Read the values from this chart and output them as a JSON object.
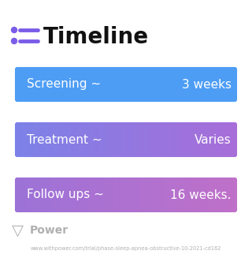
{
  "title": "Timeline",
  "background_color": "#ffffff",
  "rows": [
    {
      "label": "Screening ~",
      "value": "3 weeks",
      "color_left": "#4d9df5",
      "color_right": "#4d9df5"
    },
    {
      "label": "Treatment ~",
      "value": "Varies",
      "color_left": "#7b82e8",
      "color_right": "#a96dd8"
    },
    {
      "label": "Follow ups ~",
      "value": "16 weeks.",
      "color_left": "#9b72d8",
      "color_right": "#c070c8"
    }
  ],
  "icon_color": "#7b5de8",
  "title_color": "#111111",
  "text_color": "#ffffff",
  "watermark_text": "Power",
  "watermark_color": "#b0b0b0",
  "url_text": "www.withpower.com/trial/phase-sleep-apnea-obstructive-10-2021-cd162",
  "url_color": "#b0b0b0",
  "title_fontsize": 20,
  "label_fontsize": 11,
  "value_fontsize": 11,
  "watermark_fontsize": 10,
  "url_fontsize": 4.8,
  "fig_width": 3.2,
  "fig_height": 3.27,
  "dpi": 100
}
